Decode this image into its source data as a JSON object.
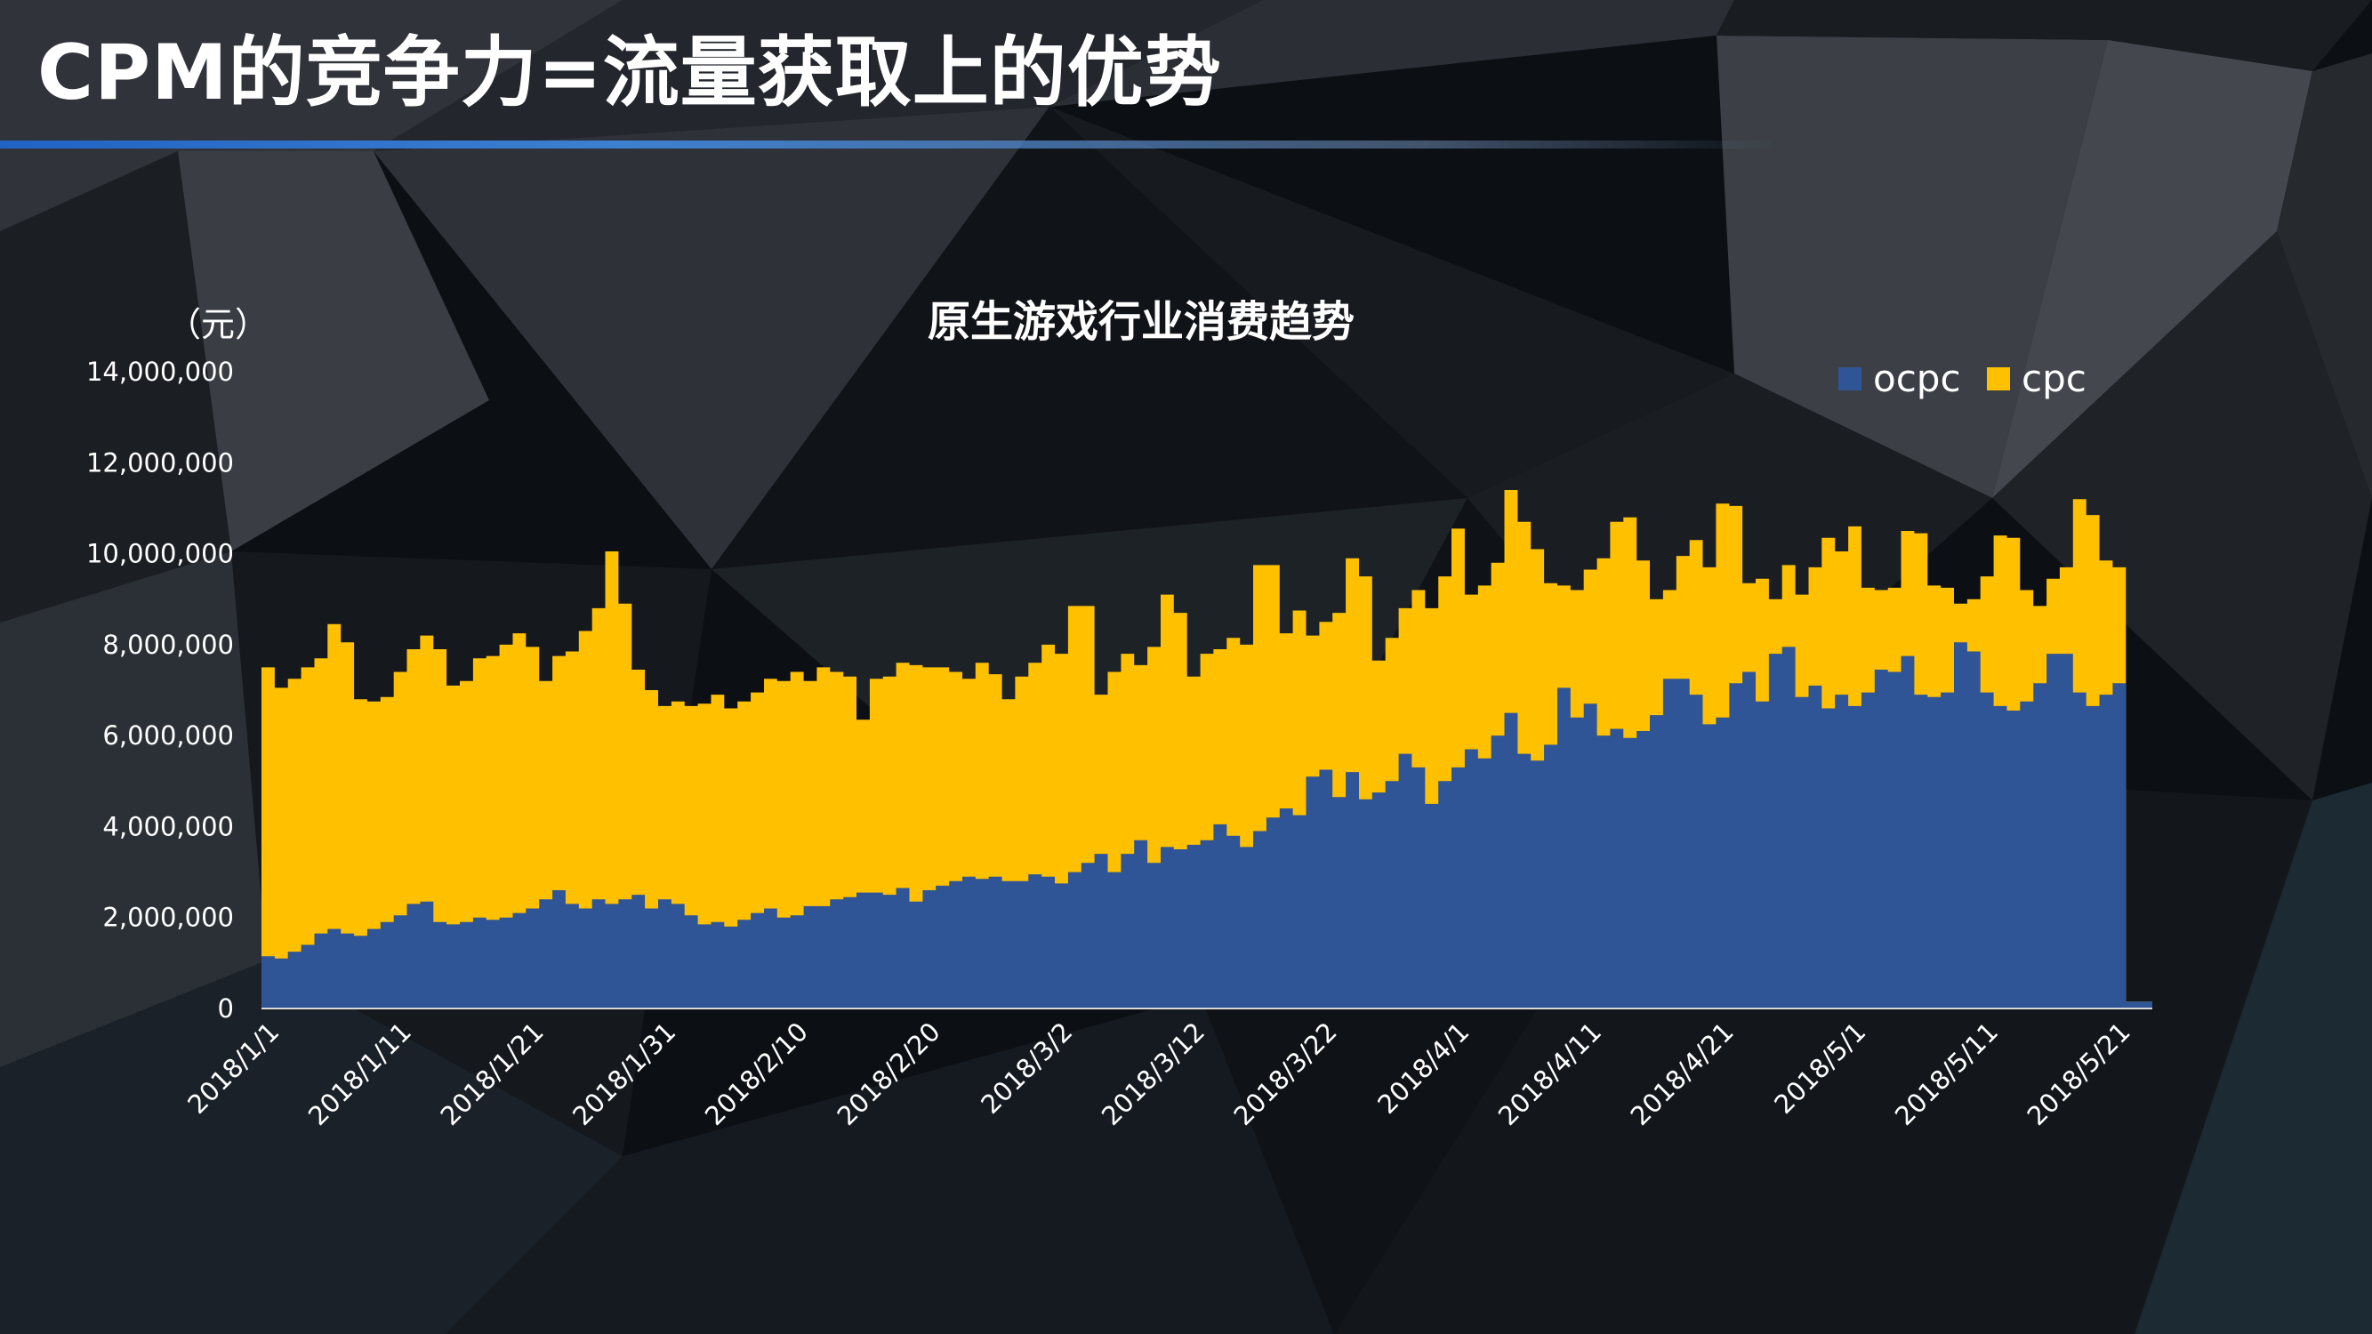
{
  "slide": {
    "title": "CPM的竞争力=流量获取上的优势"
  },
  "chart_data": {
    "type": "stacked-area",
    "title": "原生游戏行业消费趋势",
    "unit_label": "（元）",
    "ylim": [
      0,
      14000000
    ],
    "yticks": [
      "0",
      "2,000,000",
      "4,000,000",
      "6,000,000",
      "8,000,000",
      "10,000,000",
      "12,000,000",
      "14,000,000"
    ],
    "x_tick_labels": [
      "2018/1/1",
      "2018/1/11",
      "2018/1/21",
      "2018/1/31",
      "2018/2/10",
      "2018/2/20",
      "2018/3/2",
      "2018/3/12",
      "2018/3/22",
      "2018/4/1",
      "2018/4/11",
      "2018/4/21",
      "2018/5/1",
      "2018/5/11",
      "2018/5/21"
    ],
    "legend_position": "top-right",
    "series": [
      {
        "name": "ocpc",
        "color": "#2f5597",
        "values": [
          1150000,
          1100000,
          1250000,
          1400000,
          1650000,
          1750000,
          1650000,
          1600000,
          1750000,
          1900000,
          2050000,
          2300000,
          2350000,
          1900000,
          1850000,
          1900000,
          2000000,
          1950000,
          2000000,
          2100000,
          2200000,
          2400000,
          2600000,
          2300000,
          2200000,
          2400000,
          2300000,
          2400000,
          2500000,
          2200000,
          2400000,
          2300000,
          2050000,
          1850000,
          1900000,
          1800000,
          1950000,
          2100000,
          2200000,
          2000000,
          2050000,
          2250000,
          2250000,
          2400000,
          2450000,
          2550000,
          2550000,
          2500000,
          2650000,
          2350000,
          2600000,
          2700000,
          2800000,
          2900000,
          2850000,
          2900000,
          2800000,
          2800000,
          2950000,
          2900000,
          2750000,
          3000000,
          3200000,
          3400000,
          3000000,
          3400000,
          3700000,
          3200000,
          3550000,
          3500000,
          3600000,
          3700000,
          4050000,
          3800000,
          3550000,
          3900000,
          4200000,
          4400000,
          4250000,
          5100000,
          5250000,
          4650000,
          5200000,
          4600000,
          4750000,
          5000000,
          5600000,
          5300000,
          4500000,
          5000000,
          5300000,
          5700000,
          5500000,
          6000000,
          6500000,
          5600000,
          5450000,
          5800000,
          7050000,
          6400000,
          6700000,
          6000000,
          6150000,
          5950000,
          6100000,
          6450000,
          7250000,
          7250000,
          6900000,
          6250000,
          6400000,
          7150000,
          7400000,
          6750000,
          7800000,
          7950000,
          6850000,
          7100000,
          6600000,
          6900000,
          6650000,
          6950000,
          7450000,
          7400000,
          7750000,
          6900000,
          6850000,
          6950000,
          8050000,
          7850000,
          6950000,
          6650000,
          6550000,
          6750000,
          7150000,
          7800000,
          7800000,
          6950000,
          6650000,
          6900000,
          7150000,
          150000,
          150000
        ],
        "total": [
          7500000,
          7050000,
          7250000,
          7500000,
          7700000,
          8450000,
          8050000,
          6800000,
          6750000,
          6850000,
          7400000,
          7900000,
          8200000,
          7900000,
          7100000,
          7200000,
          7700000,
          7750000,
          8000000,
          8250000,
          7950000,
          7200000,
          7750000,
          7850000,
          8300000,
          8800000,
          10050000,
          8900000,
          7450000,
          7000000,
          6650000,
          6750000,
          6650000,
          6700000,
          6900000,
          6600000,
          6750000,
          6950000,
          7250000,
          7200000,
          7400000,
          7200000,
          7500000,
          7400000,
          7300000,
          6350000,
          7250000,
          7300000,
          7600000,
          7550000,
          7500000,
          7500000,
          7400000,
          7250000,
          7600000,
          7350000,
          6800000,
          7300000,
          7600000,
          8000000,
          7800000,
          8850000,
          8850000,
          6900000,
          7400000,
          7800000,
          7550000,
          7950000,
          9100000,
          8700000,
          7300000,
          7800000,
          7900000,
          8150000,
          8000000,
          9750000,
          9750000,
          8250000,
          8750000,
          8200000,
          8500000,
          8700000,
          9900000,
          9500000,
          7650000,
          8150000,
          8800000,
          9200000,
          8800000,
          9500000,
          10550000,
          9100000,
          9300000,
          9800000,
          11400000,
          10700000,
          10100000,
          9350000,
          9300000,
          9200000,
          9650000,
          9900000,
          10700000,
          10800000,
          9850000,
          9000000,
          9200000,
          9950000,
          10300000,
          9700000,
          11100000,
          11050000,
          9350000,
          9450000,
          9000000,
          9750000,
          9100000,
          9700000,
          10350000,
          10050000,
          10600000,
          9250000,
          9200000,
          9250000,
          10500000,
          10450000,
          9300000,
          9250000,
          8900000,
          9000000,
          9500000,
          10400000,
          10350000,
          9200000,
          8850000,
          9450000,
          9700000,
          11200000,
          10850000,
          9850000,
          9700000,
          150000,
          150000
        ]
      },
      {
        "name": "cpc",
        "color": "#ffc000"
      }
    ]
  }
}
